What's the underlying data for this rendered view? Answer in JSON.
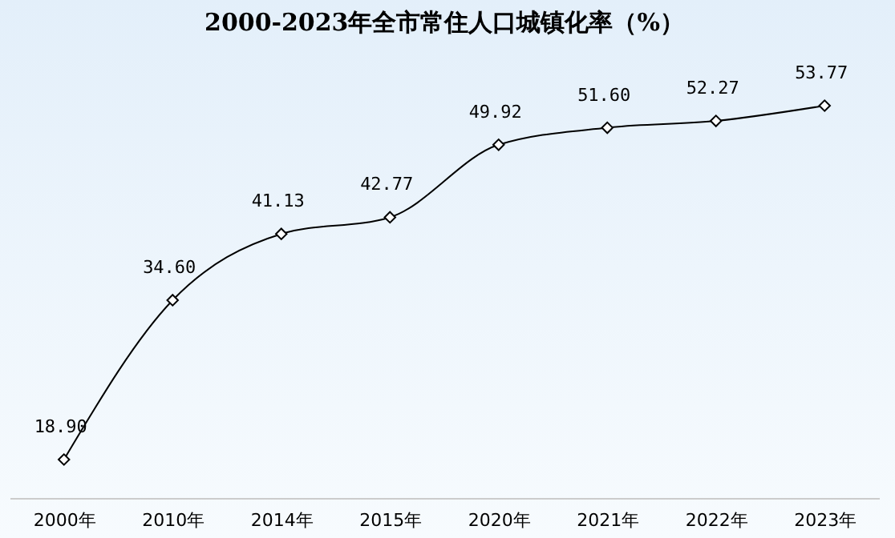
{
  "chart_data": {
    "type": "line",
    "title": "2000-2023年全市常住人口城镇化率（%）",
    "categories": [
      "2000年",
      "2010年",
      "2014年",
      "2015年",
      "2020年",
      "2021年",
      "2022年",
      "2023年"
    ],
    "series": [
      {
        "color": "#000000",
        "values": [
          18.9,
          34.6,
          41.13,
          42.77,
          49.92,
          51.6,
          52.27,
          53.77
        ],
        "value_labels": [
          "18.90",
          "34.60",
          "41.13",
          "42.77",
          "49.92",
          "51.60",
          "52.27",
          "53.77"
        ]
      }
    ],
    "marker": "diamond",
    "line_style": "solid"
  }
}
